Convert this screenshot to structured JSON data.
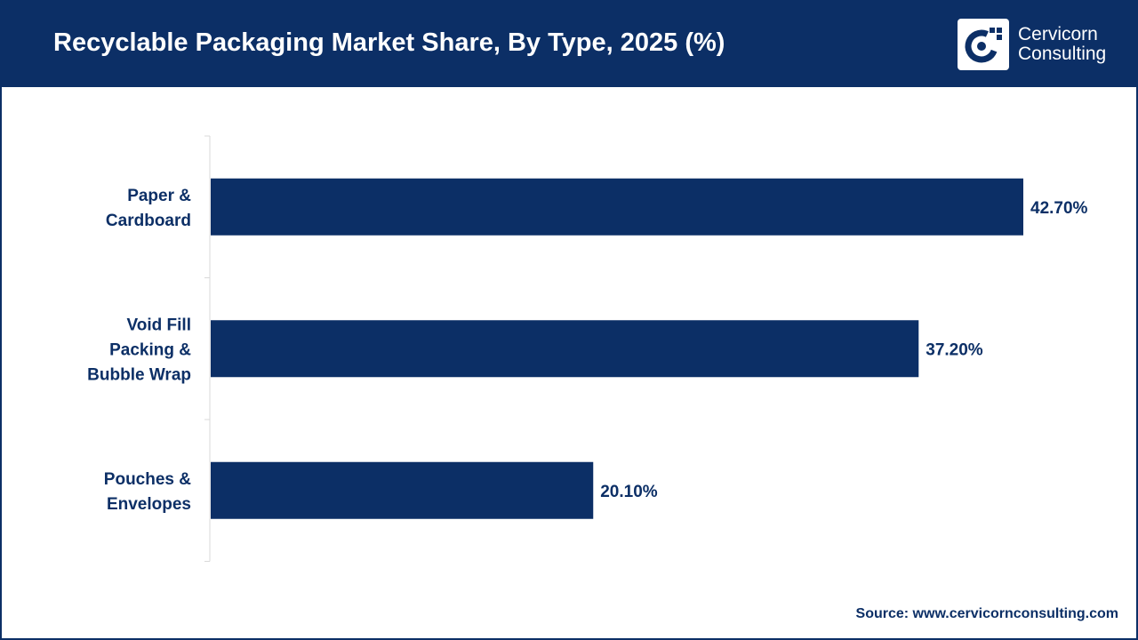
{
  "header": {
    "title": "Recyclable Packaging Market Share, By Type, 2025 (%)",
    "logo": {
      "line1": "Cervicorn",
      "line2": "Consulting",
      "icon": "cervicorn-logo-icon"
    }
  },
  "footer": {
    "source": "Source: www.cervicornconsulting.com"
  },
  "colors": {
    "bar": "#0c2f66",
    "header": "#0c2f66",
    "text": "#0c2f66"
  },
  "chart_data": {
    "type": "bar",
    "orientation": "horizontal",
    "categories": [
      [
        "Paper &",
        "Cardboard"
      ],
      [
        "Void Fill",
        "Packing &",
        "Bubble Wrap"
      ],
      [
        "Pouches &",
        "Envelopes"
      ]
    ],
    "values": [
      42.7,
      37.2,
      20.1
    ],
    "data_labels": [
      "42.70%",
      "37.20%",
      "20.10%"
    ],
    "unit": "%",
    "xlim": [
      0,
      42.7
    ],
    "grid": false,
    "legend": "none"
  }
}
